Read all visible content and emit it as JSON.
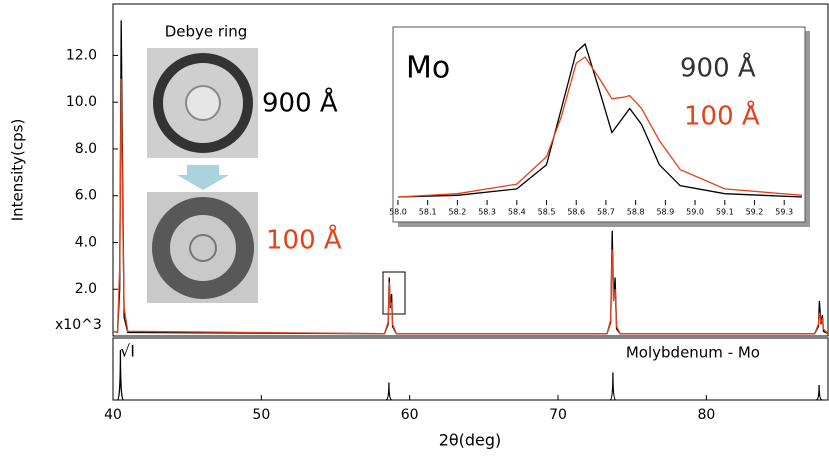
{
  "chart_data": [
    {
      "type": "line",
      "x_label": "2θ(deg)",
      "y_label": "Intensity(cps)",
      "y_multiplier": "x10^3",
      "image_title": "Debye ring",
      "xlim": [
        40,
        88.2
      ],
      "ylim": [
        0,
        14.2
      ],
      "xticks": [
        40,
        50,
        60,
        70,
        80
      ],
      "yticks": [
        {
          "value": 2,
          "label": "2.0"
        },
        {
          "value": 4,
          "label": "4.0"
        },
        {
          "value": 6,
          "label": "6.0"
        },
        {
          "value": 8,
          "label": "8.0"
        },
        {
          "value": 10,
          "label": "10.0"
        },
        {
          "value": 12,
          "label": "12.0"
        }
      ],
      "x": [
        40,
        40.3,
        40.45,
        40.55,
        40.65,
        40.75,
        41.0,
        58.3,
        58.55,
        58.62,
        58.7,
        58.78,
        58.85,
        59.1,
        73.3,
        73.55,
        73.65,
        73.75,
        73.85,
        73.95,
        74.2,
        87.3,
        87.55,
        87.62,
        87.72,
        87.82,
        87.9,
        88.2
      ],
      "series": [
        {
          "name": "900 Å",
          "color": "#000000",
          "values": [
            0.2,
            0.15,
            2,
            13.5,
            6.8,
            0.8,
            0.15,
            0.1,
            0.5,
            2.5,
            1.2,
            1.8,
            0.4,
            0.1,
            0.1,
            0.6,
            4.5,
            1.5,
            2.5,
            0.3,
            0.1,
            0.1,
            0.4,
            1.5,
            0.5,
            0.9,
            0.2,
            0.1
          ]
        },
        {
          "name": "100 Å",
          "color": "#e8401a",
          "values": [
            0.2,
            0.15,
            3,
            11.0,
            5.5,
            1.2,
            0.2,
            0.1,
            0.6,
            2.3,
            1.3,
            1.4,
            0.5,
            0.1,
            0.1,
            0.7,
            3.7,
            1.5,
            2.0,
            0.4,
            0.1,
            0.1,
            0.5,
            1.0,
            0.6,
            0.7,
            0.3,
            0.1
          ]
        }
      ]
    },
    {
      "type": "line",
      "title": "Mo",
      "xlim": [
        57.99,
        59.37
      ],
      "ylim": [
        0,
        1.1
      ],
      "xticks": [
        {
          "value": 58,
          "label": "58.0"
        },
        58.1,
        58.2,
        58.3,
        58.4,
        58.5,
        58.6,
        58.7,
        58.8,
        58.9,
        {
          "value": 59,
          "label": "59.0"
        },
        59.1,
        59.2,
        59.3
      ],
      "x": [
        58.0,
        58.2,
        58.4,
        58.5,
        58.55,
        58.6,
        58.63,
        58.68,
        58.72,
        58.76,
        58.78,
        58.82,
        58.88,
        58.95,
        59.1,
        59.36
      ],
      "series": [
        {
          "name": "900 Å",
          "color": "#000000",
          "values": [
            0.05,
            0.06,
            0.1,
            0.25,
            0.6,
            0.95,
            1.0,
            0.7,
            0.45,
            0.55,
            0.6,
            0.5,
            0.25,
            0.12,
            0.07,
            0.05
          ]
        },
        {
          "name": "100 Å",
          "color": "#e8401a",
          "values": [
            0.05,
            0.07,
            0.13,
            0.3,
            0.55,
            0.88,
            0.92,
            0.78,
            0.66,
            0.67,
            0.68,
            0.6,
            0.4,
            0.22,
            0.1,
            0.06
          ]
        }
      ]
    },
    {
      "type": "stick",
      "title": "Molybdenum - Mo",
      "y_label": "√I",
      "color": "#000000",
      "xlim": [
        40,
        88.2
      ],
      "ylim": [
        0,
        1.1
      ],
      "x": [
        40.5,
        58.6,
        73.7,
        87.6
      ],
      "values": [
        1.0,
        0.35,
        0.55,
        0.3
      ]
    }
  ]
}
